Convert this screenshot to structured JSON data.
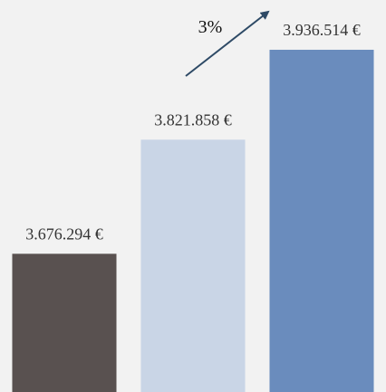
{
  "chart_data": {
    "type": "bar",
    "values": [
      3676294,
      3821858,
      3936514
    ],
    "value_labels": [
      "3.676.294 €",
      "3.821.858 €",
      "3.936.514 €"
    ],
    "colors": [
      "#595150",
      "#c9d5e6",
      "#6a8cbd"
    ],
    "ylim": [
      3500000,
      4000000
    ],
    "annotation": "3%"
  }
}
